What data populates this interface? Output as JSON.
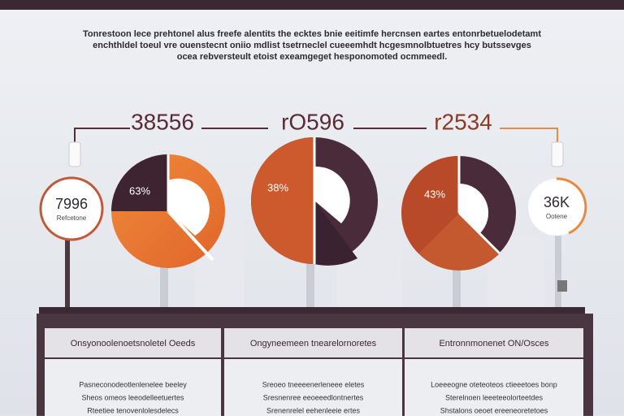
{
  "header": {
    "lines": [
      "Tonrestoon lece prehtonel alus freefe alentits the ecktes bnie eeitimfe hercnsen eartes entonrbetuelodetamt",
      "enchthldel toeul vre ouenstecnt oniio mdlist tsetrneclel cueeemhdt hcgesmnolbtuetres hcy butssevges",
      "ocea rebversteult etoist exeamgeget hesponomoted ocmmeedl."
    ]
  },
  "metrics": [
    "38556",
    "rO596",
    "r2534"
  ],
  "pies": [
    "63%",
    "38%",
    "43%"
  ],
  "badges": [
    {
      "value": "7996",
      "caption": "Refcetone"
    },
    {
      "value": "36K",
      "caption": "Ootene"
    }
  ],
  "panels": [
    {
      "title": "Onsyonoolenoetsnoletel Oeeds",
      "lines": [
        "Pasneconodeotlenlenelee beeley",
        "Sheos omeos leeodelleetuertes",
        "Rteetiee tenovenlolesdelecs"
      ]
    },
    {
      "title": "Ongyneemeen tnearelornoretes",
      "lines": [
        "Sreoeo tneeeenerleneee eletes",
        "Sresnenree eeoeeedlontnertes",
        "Srenenrelel eehenleeie ertes"
      ]
    },
    {
      "title": "Entronnmonenet ON/Osces",
      "lines": [
        "Loeeeogne oteteoteos ctieeetoes bonp",
        "Sterelnoen leeeteeolorteetdes",
        "Shstalons oeoet ereeneoretetoes"
      ]
    }
  ]
}
